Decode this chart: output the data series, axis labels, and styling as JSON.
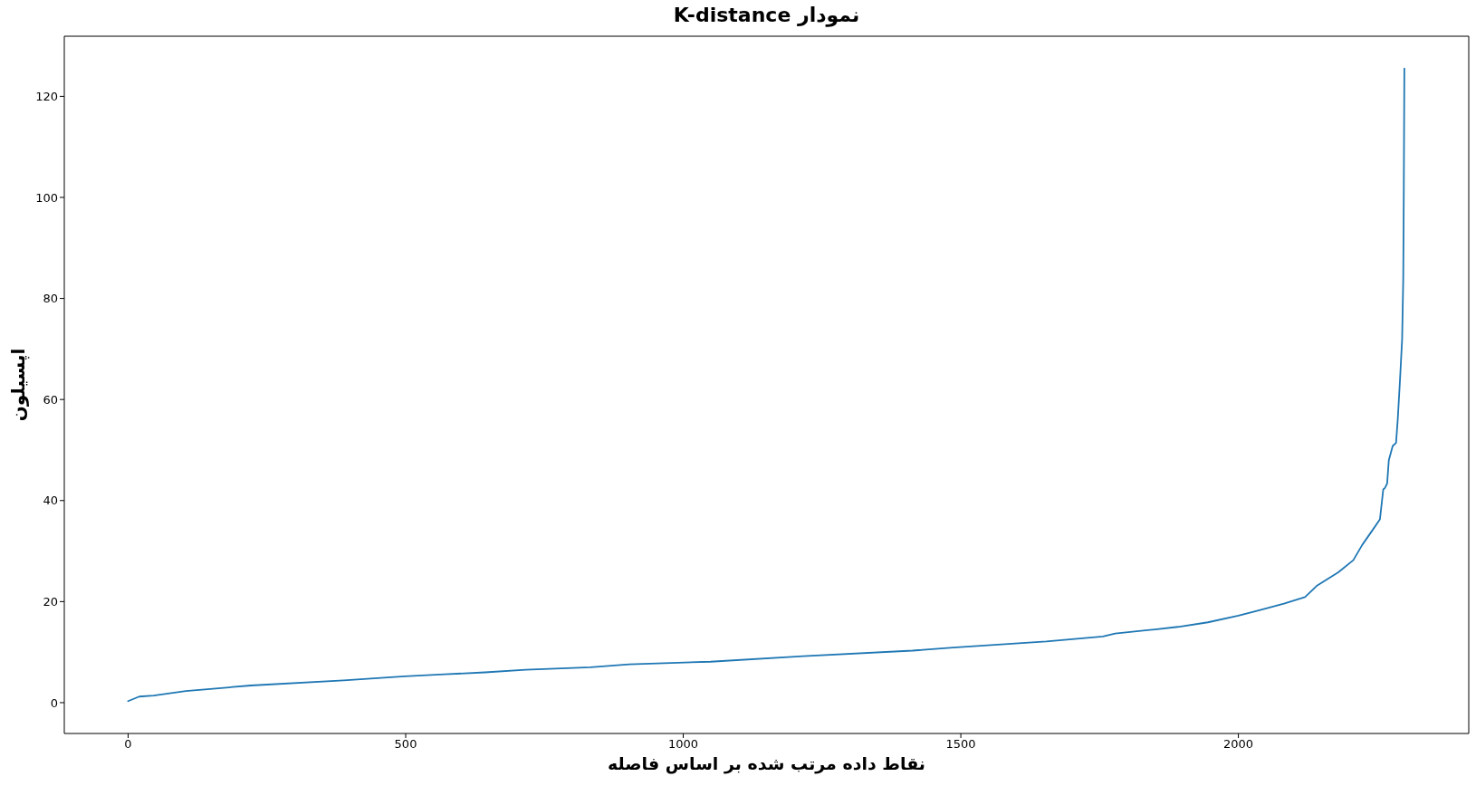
{
  "chart_data": {
    "type": "line",
    "title": "نمودار K-distance",
    "xlabel": "نقاط داده مرتب شده بر اساس فاصله",
    "ylabel": "اپسیلون",
    "x": [
      0,
      20,
      46,
      104,
      221,
      388,
      498,
      570,
      643,
      716,
      833,
      903,
      1049,
      1216,
      1413,
      1486,
      1654,
      1756,
      1778,
      1850,
      1891,
      1945,
      2000,
      2038,
      2082,
      2120,
      2141,
      2180,
      2207,
      2223,
      2242,
      2255,
      2261,
      2264,
      2268,
      2271,
      2278,
      2284,
      2287,
      2291,
      2295,
      2297,
      2298,
      2299
    ],
    "values": [
      0.3,
      1.2,
      1.4,
      2.3,
      3.4,
      4.4,
      5.2,
      5.6,
      6.0,
      6.5,
      7.0,
      7.6,
      8.1,
      9.2,
      10.3,
      10.9,
      12.1,
      13.1,
      13.7,
      14.5,
      15.0,
      15.9,
      17.2,
      18.3,
      19.6,
      20.9,
      23.1,
      25.8,
      28.2,
      31.2,
      34.2,
      36.3,
      42.2,
      42.5,
      43.4,
      48.0,
      50.8,
      51.4,
      55.9,
      63.6,
      72.0,
      83.9,
      101.7,
      125.5
    ],
    "color": "#1f77b4",
    "line_style": "solid",
    "xlim": [
      -115,
      2415
    ],
    "ylim": [
      -6.1,
      131.9
    ],
    "xticks": [
      0,
      500,
      1000,
      1500,
      2000
    ],
    "yticks": [
      0,
      20,
      40,
      60,
      80,
      100,
      120
    ]
  }
}
